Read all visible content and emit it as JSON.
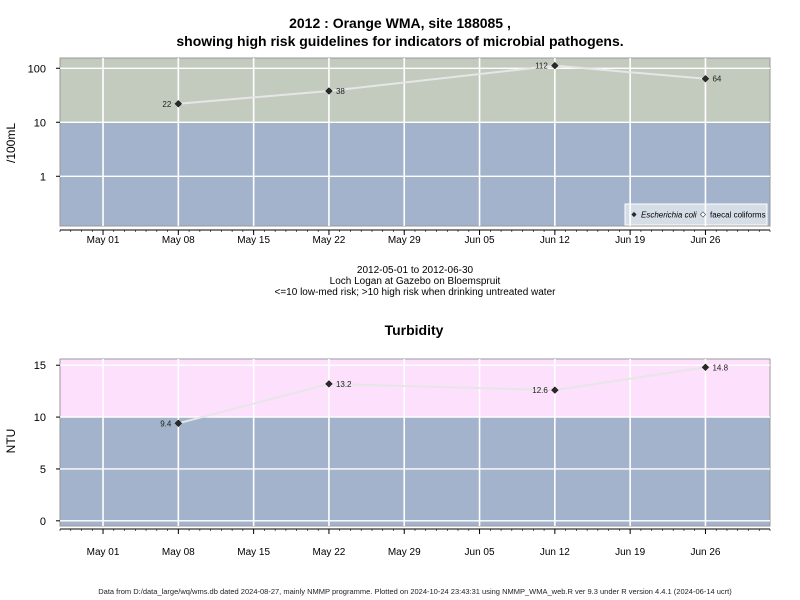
{
  "title_line1": "2012 : Orange WMA, site 188085 ,",
  "title_line2": "showing high risk guidelines for indicators of microbial pathogens.",
  "caption": {
    "date_range": "2012-05-01 to 2012-06-30",
    "location": "Loch Logan at Gazebo on Bloemspruit",
    "risk_note": "<=10 low-med risk; >10 high risk when drinking untreated water"
  },
  "footer": "Data from D:/data_large/wq/wms.db dated 2024-08-27, mainly NMMP programme. Plotted on 2024-10-24 23:43:31 using NMMP_WMA_web.R ver 9.3 under R version 4.4.1 (2024-06-14 ucrt)",
  "colors": {
    "high_risk_micro": "#c3cbbf",
    "low_risk": "#a2b3cb",
    "high_risk_turbidity": "#fce0fc",
    "gridline": "#ffffff",
    "series_line": "#e6e6e6",
    "point": "#2a2a2a"
  },
  "chart_data": [
    {
      "type": "line",
      "name": "microbial",
      "ylabel": "/100mL",
      "y_scale": "log",
      "yticks": [
        1,
        10,
        100
      ],
      "ytick_labels": [
        "1",
        "10",
        "100"
      ],
      "ylim": [
        0.12,
        155
      ],
      "threshold": 10,
      "xlim": [
        "2012-04-27",
        "2012-07-02"
      ],
      "xticks": [
        "2012-05-01",
        "2012-05-08",
        "2012-05-15",
        "2012-05-22",
        "2012-05-29",
        "2012-06-05",
        "2012-06-12",
        "2012-06-19",
        "2012-06-26"
      ],
      "xtick_labels": [
        "May 01",
        "May 08",
        "May 15",
        "May 22",
        "May 29",
        "Jun 05",
        "Jun 12",
        "Jun 19",
        "Jun 26"
      ],
      "legend_position": "bottom-right",
      "legend": [
        "Escherichia coli",
        "faecal coliforms"
      ],
      "series": [
        {
          "name": "Escherichia coli",
          "x": [
            "2012-05-08",
            "2012-05-22",
            "2012-06-12",
            "2012-06-26"
          ],
          "values": [
            22,
            38,
            112,
            64
          ],
          "value_labels": [
            "22",
            "38",
            "112",
            "64"
          ],
          "label_side": [
            "left",
            "right",
            "left",
            "right"
          ]
        }
      ]
    },
    {
      "type": "line",
      "name": "turbidity",
      "title": "Turbidity",
      "ylabel": "NTU",
      "y_scale": "linear",
      "yticks": [
        0,
        5,
        10,
        15
      ],
      "ytick_labels": [
        "0",
        "5",
        "10",
        "15"
      ],
      "ylim": [
        -0.5,
        15.6
      ],
      "threshold": 10,
      "xlim": [
        "2012-04-27",
        "2012-07-02"
      ],
      "xticks": [
        "2012-05-01",
        "2012-05-08",
        "2012-05-15",
        "2012-05-22",
        "2012-05-29",
        "2012-06-05",
        "2012-06-12",
        "2012-06-19",
        "2012-06-26"
      ],
      "xtick_labels": [
        "May 01",
        "May 08",
        "May 15",
        "May 22",
        "May 29",
        "Jun 05",
        "Jun 12",
        "Jun 19",
        "Jun 26"
      ],
      "series": [
        {
          "x": [
            "2012-05-08",
            "2012-05-22",
            "2012-06-12",
            "2012-06-26"
          ],
          "values": [
            9.4,
            13.2,
            12.6,
            14.8
          ],
          "value_labels": [
            "9.4",
            "13.2",
            "12.6",
            "14.8"
          ],
          "label_side": [
            "left",
            "right",
            "left",
            "right"
          ]
        }
      ]
    }
  ]
}
